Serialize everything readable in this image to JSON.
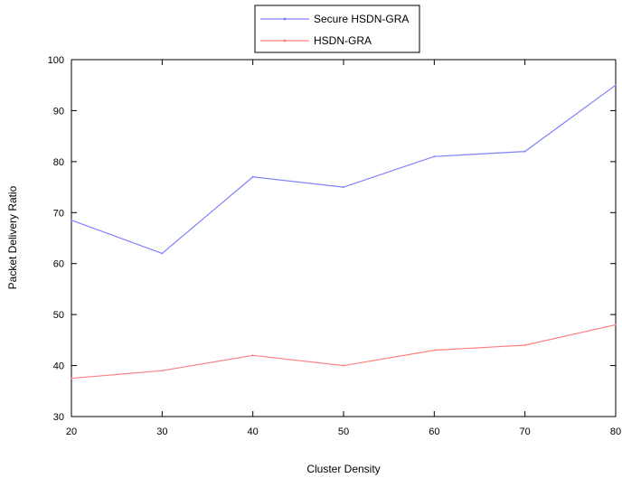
{
  "chart_data": {
    "type": "line",
    "xlabel": "Cluster Density",
    "ylabel": "Packet Delivery Ratio",
    "x": [
      20,
      30,
      40,
      50,
      60,
      70,
      80
    ],
    "xlim": [
      20,
      80
    ],
    "ylim": [
      30,
      100
    ],
    "xticks": [
      "20",
      "30",
      "40",
      "50",
      "60",
      "70",
      "80"
    ],
    "yticks": [
      "30",
      "40",
      "50",
      "60",
      "70",
      "80",
      "90",
      "100"
    ],
    "grid": false,
    "legend_position": "top-center",
    "series": [
      {
        "name": "Secure HSDN-GRA",
        "color": "#8080ff",
        "values": [
          68.5,
          62,
          77,
          75,
          81,
          82,
          95
        ]
      },
      {
        "name": "HSDN-GRA",
        "color": "#ff8080",
        "values": [
          37.5,
          39,
          42,
          40,
          43,
          44,
          48
        ]
      }
    ]
  }
}
